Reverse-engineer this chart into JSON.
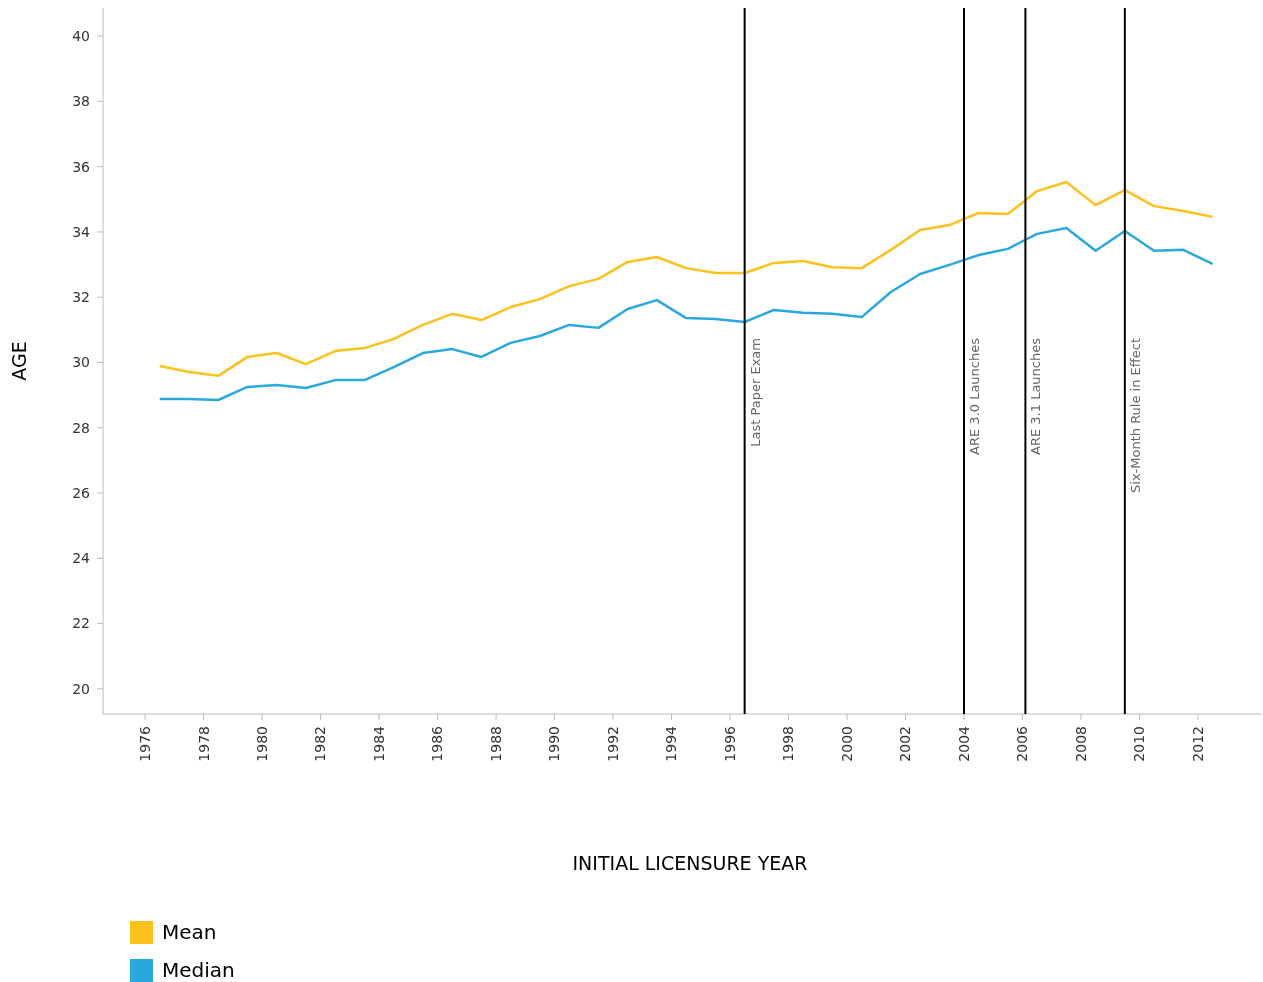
{
  "chart_data": {
    "type": "line",
    "xlabel": "INITIAL LICENSURE YEAR",
    "ylabel": "AGE",
    "x": [
      1976.5,
      1977.5,
      1978.5,
      1979.5,
      1980.5,
      1981.5,
      1982.5,
      1983.5,
      1984.5,
      1985.5,
      1986.5,
      1987.5,
      1988.5,
      1989.5,
      1990.5,
      1991.5,
      1992.5,
      1993.5,
      1994.5,
      1995.5,
      1996.5,
      1997.5,
      1998.5,
      1999.5,
      2000.5,
      2001.5,
      2002.5,
      2003.5,
      2004.5,
      2005.5,
      2006.5,
      2007.5,
      2008.5,
      2009.5,
      2010.5,
      2011.5,
      2012.5
    ],
    "series": [
      {
        "name": "Mean",
        "color": "#fcc21b",
        "values": [
          29.89,
          29.71,
          29.59,
          30.17,
          30.29,
          29.95,
          30.35,
          30.44,
          30.72,
          31.15,
          31.49,
          31.3,
          31.7,
          31.94,
          32.34,
          32.56,
          33.08,
          33.23,
          32.89,
          32.74,
          32.74,
          33.05,
          33.11,
          32.92,
          32.89,
          33.45,
          34.06,
          34.21,
          34.58,
          34.55,
          35.25,
          35.53,
          34.82,
          35.28,
          34.79,
          34.64,
          34.46
        ]
      },
      {
        "name": "Median",
        "color": "#29a8e0",
        "values": [
          28.88,
          28.88,
          28.85,
          29.25,
          29.31,
          29.22,
          29.46,
          29.46,
          29.86,
          30.29,
          30.41,
          30.17,
          30.6,
          30.81,
          31.15,
          31.06,
          31.64,
          31.91,
          31.36,
          31.33,
          31.24,
          31.61,
          31.52,
          31.49,
          31.39,
          32.16,
          32.71,
          32.99,
          33.29,
          33.48,
          33.94,
          34.12,
          33.42,
          34.03,
          33.42,
          33.45,
          33.02
        ]
      }
    ],
    "xlim": [
      1974.56,
      2014.19
    ],
    "xticks": [
      1976,
      1978,
      1980,
      1982,
      1984,
      1986,
      1988,
      1990,
      1992,
      1994,
      1996,
      1998,
      2000,
      2002,
      2004,
      2006,
      2008,
      2010,
      2012
    ],
    "ylim": [
      19.23,
      40.86
    ],
    "yticks": [
      20,
      22,
      24,
      26,
      28,
      30,
      32,
      34,
      36,
      38,
      40
    ],
    "ref_lines": [
      {
        "axis": "x",
        "value": 1996.5,
        "label": "Last Paper Exam",
        "color": "#000000"
      },
      {
        "axis": "x",
        "value": 2004.0,
        "label": "ARE 3.0 Launches",
        "color": "#000000"
      },
      {
        "axis": "x",
        "value": 2006.1,
        "label": "ARE 3.1 Launches",
        "color": "#000000"
      },
      {
        "axis": "x",
        "value": 2009.5,
        "label": "Six-Month Rule in Effect",
        "color": "#000000"
      }
    ],
    "legend": "bottom left",
    "grid": false
  }
}
